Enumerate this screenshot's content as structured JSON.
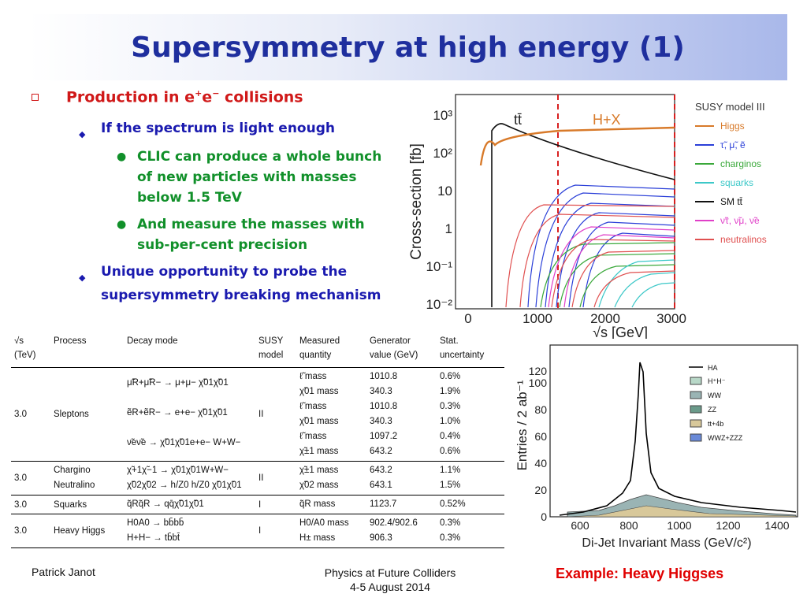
{
  "title": "Supersymmetry at high energy (1)",
  "bullets": {
    "l1_main": "Production in e",
    "l1_sup1": "+",
    "l1_mid": "e",
    "l1_sup2": "−",
    "l1_tail": " collisions",
    "l2_a": "If the spectrum is light enough",
    "l3_a": "CLIC can produce a whole bunch of new particles with masses below 1.5 TeV",
    "l3_b": "And measure the masses with sub-per-cent precision",
    "l2_b": "Unique opportunity to probe the supersymmetry breaking mechanism"
  },
  "xsec_plot": {
    "ylabel": "Cross-section [fb]",
    "xlabel": "√s [GeV]",
    "label_tt": "tt̄",
    "label_hx": "H+X",
    "xticks": [
      "0",
      "1000",
      "2000",
      "3000"
    ],
    "yticks": [
      "10³",
      "10²",
      "10",
      "1",
      "10⁻¹",
      "10⁻²"
    ],
    "legend_title": "SUSY model III",
    "legend": [
      {
        "label": "Higgs",
        "color": "#d87a2a"
      },
      {
        "label": "τ̃, μ̃, ẽ",
        "color": "#2a3fd8"
      },
      {
        "label": "charginos",
        "color": "#3aa83a"
      },
      {
        "label": "squarks",
        "color": "#3cc8c8"
      },
      {
        "label": "SM tt̄",
        "color": "#111111"
      },
      {
        "label": "ν̃τ, ν̃μ, ν̃e",
        "color": "#e040c8"
      },
      {
        "label": "neutralinos",
        "color": "#e05050"
      }
    ]
  },
  "mass_plot": {
    "ylabel": "Entries / 2 ab⁻¹",
    "xlabel": "Di-Jet Invariant Mass (GeV/c²)",
    "xticks": [
      "600",
      "800",
      "1000",
      "1200",
      "1400"
    ],
    "yticks": [
      "0",
      "20",
      "40",
      "60",
      "80",
      "100",
      "120"
    ],
    "legend": [
      {
        "label": "HA",
        "color": "#000000"
      },
      {
        "label": "H⁺H⁻",
        "color": "#b8d8c8"
      },
      {
        "label": "WW",
        "color": "#9ab4b4"
      },
      {
        "label": "ZZ",
        "color": "#6a9a8a"
      },
      {
        "label": "tt+4b",
        "color": "#d8c89a"
      },
      {
        "label": "WWZ+ZZZ",
        "color": "#6a8ad8"
      }
    ]
  },
  "table": {
    "headers": {
      "sqrt_s": "√s",
      "sqrt_s_unit": "(TeV)",
      "process": "Process",
      "decay": "Decay mode",
      "susy": "SUSY",
      "susy2": "model",
      "measured": "Measured",
      "measured2": "quantity",
      "gen": "Generator",
      "gen2": "value (GeV)",
      "stat": "Stat.",
      "stat2": "uncertainty"
    },
    "groups": [
      {
        "energy": "3.0",
        "process": "Sleptons",
        "model": "II",
        "decays": [
          "μ̃R+μ̃R− → μ+μ− χ̃01χ̃01",
          "ẽR+ẽR− → e+e− χ̃01χ̃01",
          "ν̃eν̃e → χ̃01χ̃01e+e− W+W−"
        ],
        "rows": [
          {
            "q": "ℓ̃ mass",
            "v": "1010.8",
            "u": "0.6%"
          },
          {
            "q": "χ̃01 mass",
            "v": "340.3",
            "u": "1.9%"
          },
          {
            "q": "ℓ̃ mass",
            "v": "1010.8",
            "u": "0.3%"
          },
          {
            "q": "χ̃01 mass",
            "v": "340.3",
            "u": "1.0%"
          },
          {
            "q": "ℓ̃ mass",
            "v": "1097.2",
            "u": "0.4%"
          },
          {
            "q": "χ̃±1 mass",
            "v": "643.2",
            "u": "0.6%"
          }
        ]
      },
      {
        "energy": "3.0",
        "process1": "Chargino",
        "process2": "Neutralino",
        "model": "II",
        "decays": [
          "χ̃+1χ̃−1 → χ̃01χ̃01W+W−",
          "χ̃02χ̃02 → h/Z0 h/Z0 χ̃01χ̃01"
        ],
        "rows": [
          {
            "q": "χ̃±1 mass",
            "v": "643.2",
            "u": "1.1%"
          },
          {
            "q": "χ̃02 mass",
            "v": "643.1",
            "u": "1.5%"
          }
        ]
      },
      {
        "energy": "3.0",
        "process": "Squarks",
        "model": "I",
        "decays": [
          "q̃Rq̃R → qq̄χ̃01χ̃01"
        ],
        "rows": [
          {
            "q": "q̃R mass",
            "v": "1123.7",
            "u": "0.52%"
          }
        ]
      },
      {
        "energy": "3.0",
        "process": "Heavy Higgs",
        "model": "I",
        "decays": [
          "H0A0 → bb̄bb̄",
          "H+H− → tb̄bt̄"
        ],
        "rows": [
          {
            "q": "H0/A0 mass",
            "v": "902.4/902.6",
            "u": "0.3%"
          },
          {
            "q": "H± mass",
            "v": "906.3",
            "u": "0.3%"
          }
        ]
      }
    ]
  },
  "footer": {
    "author": "Patrick Janot",
    "conf": "Physics at Future Colliders",
    "date": "4-5 August 2014",
    "example": "Example: Heavy Higgses"
  }
}
